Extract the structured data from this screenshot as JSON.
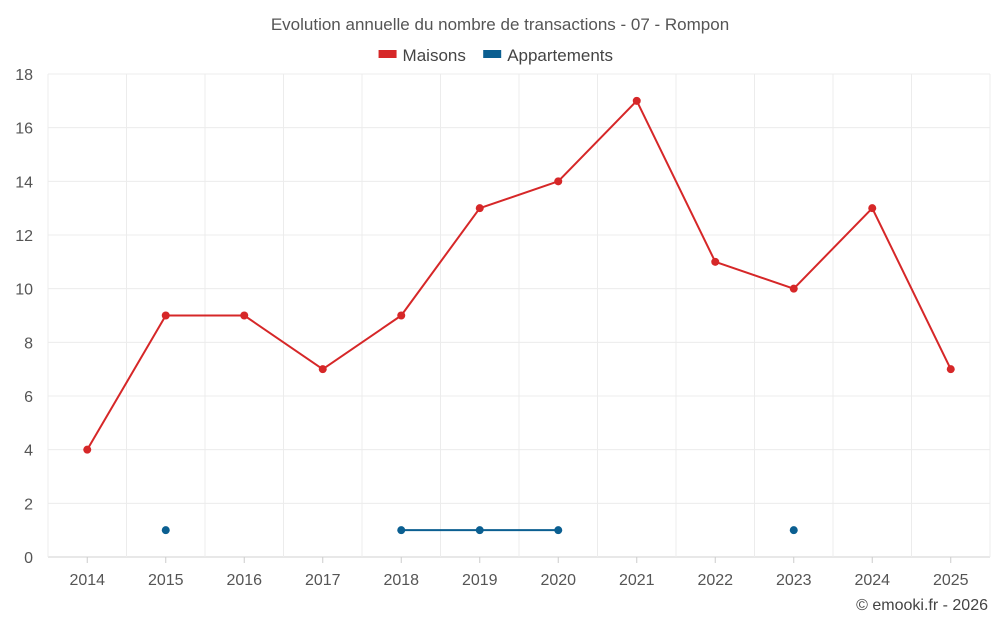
{
  "chart_data": {
    "type": "line",
    "title": "Evolution annuelle du nombre de transactions - 07 - Rompon",
    "categories": [
      "2014",
      "2015",
      "2016",
      "2017",
      "2018",
      "2019",
      "2020",
      "2021",
      "2022",
      "2023",
      "2024",
      "2025"
    ],
    "ylim": [
      0,
      18
    ],
    "yticks": [
      0,
      2,
      4,
      6,
      8,
      10,
      12,
      14,
      16,
      18
    ],
    "xlabel": "",
    "ylabel": "",
    "grid": true,
    "legend_position": "top-center",
    "series": [
      {
        "name": "Maisons",
        "color": "#d62728",
        "values": [
          4,
          9,
          9,
          7,
          9,
          13,
          14,
          17,
          11,
          10,
          13,
          7
        ]
      },
      {
        "name": "Appartements",
        "color": "#0b5f91",
        "values": [
          null,
          1,
          null,
          null,
          1,
          1,
          1,
          null,
          null,
          1,
          null,
          null
        ]
      }
    ]
  },
  "credit": "© emooki.fr - 2026"
}
